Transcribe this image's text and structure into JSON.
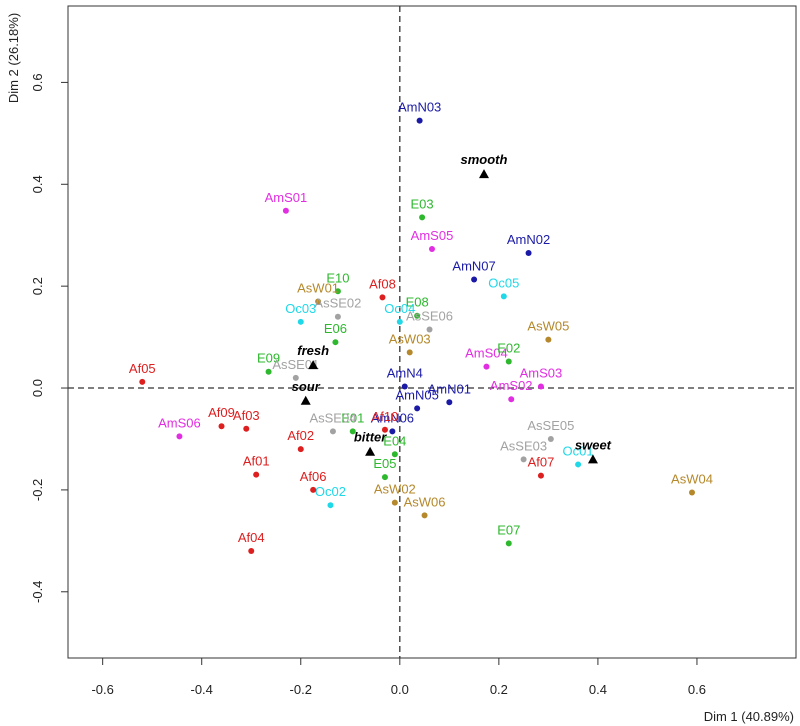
{
  "chart_data": {
    "type": "scatter",
    "xlabel": "Dim 1 (40.89%)",
    "ylabel": "Dim 2 (26.18%)",
    "xlim": [
      -0.67,
      0.8
    ],
    "ylim": [
      -0.53,
      0.75
    ],
    "xticks": [
      -0.6,
      -0.4,
      -0.2,
      0.0,
      0.2,
      0.4,
      0.6
    ],
    "yticks": [
      -0.4,
      -0.2,
      0.0,
      0.2,
      0.4,
      0.6
    ],
    "xtick_labels": [
      "-0.6",
      "-0.4",
      "-0.2",
      "0.0",
      "0.2",
      "0.4",
      "0.6"
    ],
    "ytick_labels": [
      "-0.4",
      "-0.2",
      "0.0",
      "0.2",
      "0.4",
      "0.6"
    ],
    "reference_lines": {
      "x": 0,
      "y": 0,
      "style": "dashed"
    },
    "groups": [
      {
        "name": "Af",
        "color": "#dd1f1f"
      },
      {
        "name": "AmN",
        "color": "#1a1aa6"
      },
      {
        "name": "AmS",
        "color": "#e22ee2"
      },
      {
        "name": "E",
        "color": "#2db82d"
      },
      {
        "name": "Oc",
        "color": "#1fd8e8"
      },
      {
        "name": "AsW",
        "color": "#b5882b"
      },
      {
        "name": "AsSE",
        "color": "#a2a2a2"
      }
    ],
    "points": [
      {
        "label": "AmN03",
        "group": "AmN",
        "x": 0.04,
        "y": 0.525
      },
      {
        "label": "AmN02",
        "group": "AmN",
        "x": 0.26,
        "y": 0.265
      },
      {
        "label": "AmN07",
        "group": "AmN",
        "x": 0.15,
        "y": 0.213
      },
      {
        "label": "AmN4",
        "group": "AmN",
        "x": 0.01,
        "y": 0.003
      },
      {
        "label": "AmN01",
        "group": "AmN",
        "x": 0.1,
        "y": -0.028
      },
      {
        "label": "AmN05",
        "group": "AmN",
        "x": 0.035,
        "y": -0.04
      },
      {
        "label": "AmN06",
        "group": "AmN",
        "x": -0.015,
        "y": -0.085
      },
      {
        "label": "AmS01",
        "group": "AmS",
        "x": -0.23,
        "y": 0.348
      },
      {
        "label": "AmS05",
        "group": "AmS",
        "x": 0.065,
        "y": 0.273
      },
      {
        "label": "AmS04",
        "group": "AmS",
        "x": 0.175,
        "y": 0.042
      },
      {
        "label": "AmS03",
        "group": "AmS",
        "x": 0.285,
        "y": 0.003
      },
      {
        "label": "AmS02",
        "group": "AmS",
        "x": 0.225,
        "y": -0.022
      },
      {
        "label": "AmS06",
        "group": "AmS",
        "x": -0.445,
        "y": -0.095
      },
      {
        "label": "E03",
        "group": "E",
        "x": 0.045,
        "y": 0.335
      },
      {
        "label": "E10",
        "group": "E",
        "x": -0.125,
        "y": 0.19
      },
      {
        "label": "E08",
        "group": "E",
        "x": 0.035,
        "y": 0.142
      },
      {
        "label": "E06",
        "group": "E",
        "x": -0.13,
        "y": 0.09
      },
      {
        "label": "E09",
        "group": "E",
        "x": -0.265,
        "y": 0.032
      },
      {
        "label": "E02",
        "group": "E",
        "x": 0.22,
        "y": 0.052
      },
      {
        "label": "E01",
        "group": "E",
        "x": -0.095,
        "y": -0.085
      },
      {
        "label": "E04",
        "group": "E",
        "x": -0.01,
        "y": -0.13
      },
      {
        "label": "E05",
        "group": "E",
        "x": -0.03,
        "y": -0.175
      },
      {
        "label": "E07",
        "group": "E",
        "x": 0.22,
        "y": -0.305
      },
      {
        "label": "Oc05",
        "group": "Oc",
        "x": 0.21,
        "y": 0.18
      },
      {
        "label": "Oc04",
        "group": "Oc",
        "x": 0.0,
        "y": 0.13
      },
      {
        "label": "Oc03",
        "group": "Oc",
        "x": -0.2,
        "y": 0.13
      },
      {
        "label": "Oc01",
        "group": "Oc",
        "x": 0.36,
        "y": -0.15
      },
      {
        "label": "Oc02",
        "group": "Oc",
        "x": -0.14,
        "y": -0.23
      },
      {
        "label": "AsW01",
        "group": "AsW",
        "x": -0.165,
        "y": 0.17
      },
      {
        "label": "AsW05",
        "group": "AsW",
        "x": 0.3,
        "y": 0.095
      },
      {
        "label": "AsW03",
        "group": "AsW",
        "x": 0.02,
        "y": 0.07
      },
      {
        "label": "AsW04",
        "group": "AsW",
        "x": 0.59,
        "y": -0.205
      },
      {
        "label": "AsW02",
        "group": "AsW",
        "x": -0.01,
        "y": -0.225
      },
      {
        "label": "AsW06",
        "group": "AsW",
        "x": 0.05,
        "y": -0.25
      },
      {
        "label": "AsSE02",
        "group": "AsSE",
        "x": -0.125,
        "y": 0.14
      },
      {
        "label": "AsSE06",
        "group": "AsSE",
        "x": 0.06,
        "y": 0.115
      },
      {
        "label": "AsSE01",
        "group": "AsSE",
        "x": -0.21,
        "y": 0.02
      },
      {
        "label": "AsSE04",
        "group": "AsSE",
        "x": -0.135,
        "y": -0.085
      },
      {
        "label": "AsSE05",
        "group": "AsSE",
        "x": 0.305,
        "y": -0.1
      },
      {
        "label": "AsSE03",
        "group": "AsSE",
        "x": 0.25,
        "y": -0.14
      },
      {
        "label": "Af08",
        "group": "Af",
        "x": -0.035,
        "y": 0.178
      },
      {
        "label": "Af05",
        "group": "Af",
        "x": -0.52,
        "y": 0.012
      },
      {
        "label": "Af09",
        "group": "Af",
        "x": -0.36,
        "y": -0.075
      },
      {
        "label": "Af03",
        "group": "Af",
        "x": -0.31,
        "y": -0.08
      },
      {
        "label": "Af10",
        "group": "Af",
        "x": -0.03,
        "y": -0.082
      },
      {
        "label": "Af02",
        "group": "Af",
        "x": -0.2,
        "y": -0.12
      },
      {
        "label": "Af01",
        "group": "Af",
        "x": -0.29,
        "y": -0.17
      },
      {
        "label": "Af06",
        "group": "Af",
        "x": -0.175,
        "y": -0.2
      },
      {
        "label": "Af07",
        "group": "Af",
        "x": 0.285,
        "y": -0.172
      },
      {
        "label": "Af04",
        "group": "Af",
        "x": -0.3,
        "y": -0.32
      }
    ],
    "attributes": [
      {
        "label": "smooth",
        "x": 0.17,
        "y": 0.42
      },
      {
        "label": "fresh",
        "x": -0.175,
        "y": 0.045
      },
      {
        "label": "sour",
        "x": -0.19,
        "y": -0.025
      },
      {
        "label": "bitter",
        "x": -0.06,
        "y": -0.125
      },
      {
        "label": "sweet",
        "x": 0.39,
        "y": -0.14
      }
    ]
  }
}
